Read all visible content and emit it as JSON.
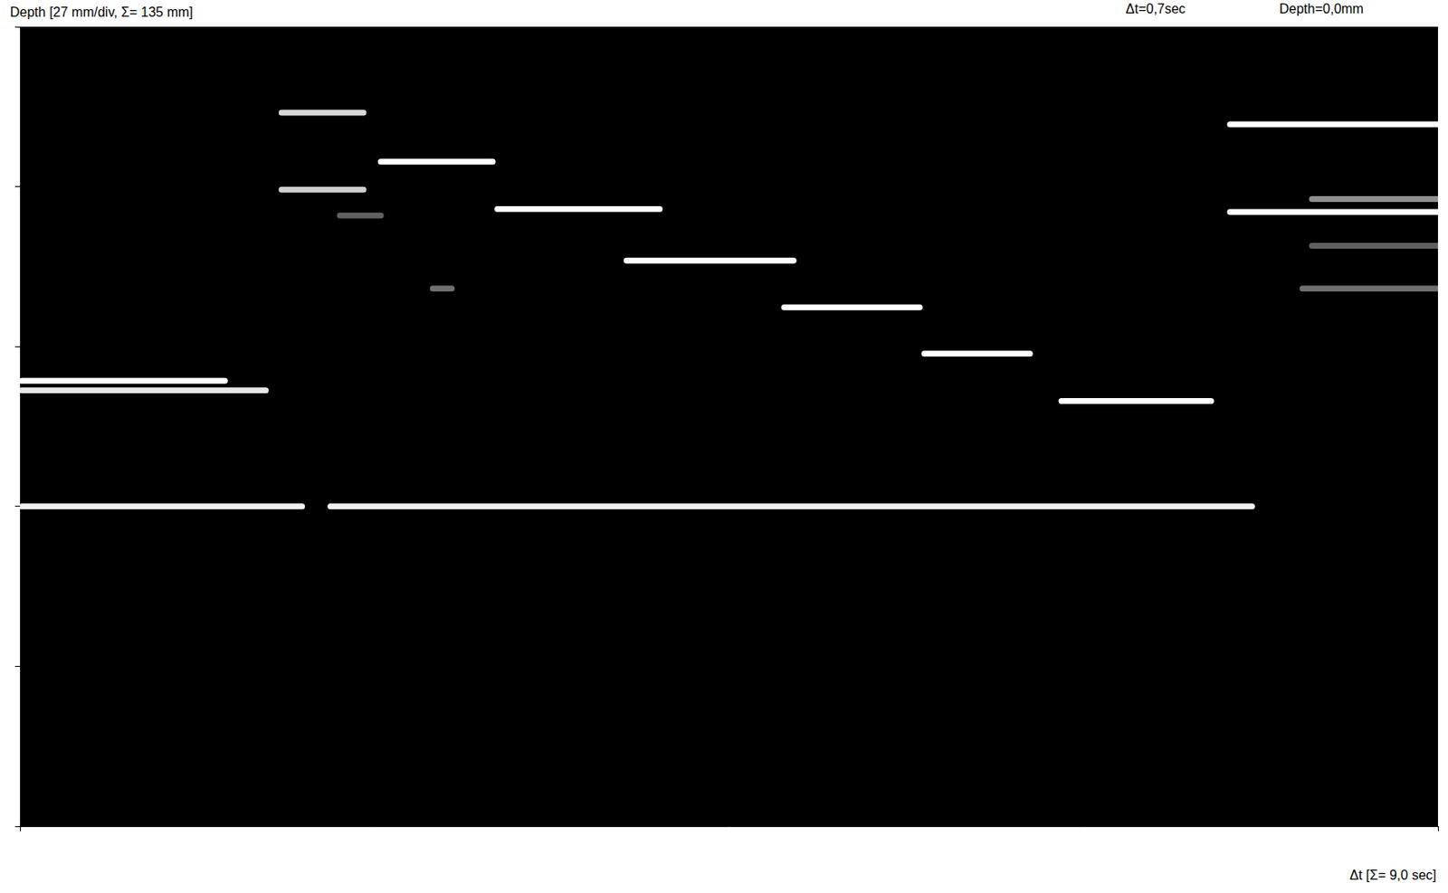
{
  "chart_data": {
    "type": "line",
    "y_label": "Depth  [27 mm/div, Σ= 135 mm]",
    "x_label": "Δt  [Σ= 9,0 sec]",
    "annotations": [
      "Δt=0,7sec",
      "Depth=0,0mm"
    ],
    "xlim": [
      0,
      9
    ],
    "xticks": [
      0,
      9
    ],
    "ylim": [
      0,
      135
    ],
    "yticks": [
      0,
      27,
      54,
      81,
      108,
      135
    ],
    "tick_labels": false,
    "grid": false,
    "series": [
      {
        "x": [
          0.01,
          1.3
        ],
        "values": [
          59.8,
          59.8
        ],
        "color": "#ffffff"
      },
      {
        "x": [
          0.01,
          1.56
        ],
        "values": [
          61.4,
          61.4
        ],
        "color": "#e8e8e8"
      },
      {
        "x": [
          0.01,
          1.79
        ],
        "values": [
          81.0,
          81.0
        ],
        "color": "#f0f0f0"
      },
      {
        "x": [
          1.97,
          7.82
        ],
        "values": [
          81.0,
          81.0
        ],
        "color": "#f0f0f0"
      },
      {
        "x": [
          1.66,
          2.18
        ],
        "values": [
          14.5,
          14.5
        ],
        "color": "#d8d8d8"
      },
      {
        "x": [
          1.66,
          2.18
        ],
        "values": [
          27.5,
          27.5
        ],
        "color": "#d0d0d0"
      },
      {
        "x": [
          2.03,
          2.29
        ],
        "values": [
          31.9,
          31.9
        ],
        "color": "#606060"
      },
      {
        "x": [
          2.62,
          2.74
        ],
        "values": [
          44.2,
          44.2
        ],
        "color": "#707070"
      },
      {
        "x": [
          2.29,
          3.0
        ],
        "values": [
          22.8,
          22.8
        ],
        "color": "#ffffff"
      },
      {
        "x": [
          3.03,
          4.06
        ],
        "values": [
          30.8,
          30.8
        ],
        "color": "#ffffff"
      },
      {
        "x": [
          3.85,
          4.91
        ],
        "values": [
          39.5,
          39.5
        ],
        "color": "#ffffff"
      },
      {
        "x": [
          4.85,
          5.71
        ],
        "values": [
          47.4,
          47.4
        ],
        "color": "#ffffff"
      },
      {
        "x": [
          5.74,
          6.41
        ],
        "values": [
          55.2,
          55.2
        ],
        "color": "#ffffff"
      },
      {
        "x": [
          6.61,
          7.56
        ],
        "values": [
          63.2,
          63.2
        ],
        "color": "#ffffff"
      },
      {
        "x": [
          7.68,
          9.0
        ],
        "values": [
          16.5,
          16.5
        ],
        "color": "#ffffff"
      },
      {
        "x": [
          7.68,
          9.0
        ],
        "values": [
          31.3,
          31.3
        ],
        "color": "#ffffff"
      },
      {
        "x": [
          8.2,
          9.0
        ],
        "values": [
          29.1,
          29.1
        ],
        "color": "#909090"
      },
      {
        "x": [
          8.2,
          9.0
        ],
        "values": [
          37.0,
          37.0
        ],
        "color": "#606060"
      },
      {
        "x": [
          8.14,
          9.0
        ],
        "values": [
          44.2,
          44.2
        ],
        "color": "#707070"
      }
    ]
  }
}
